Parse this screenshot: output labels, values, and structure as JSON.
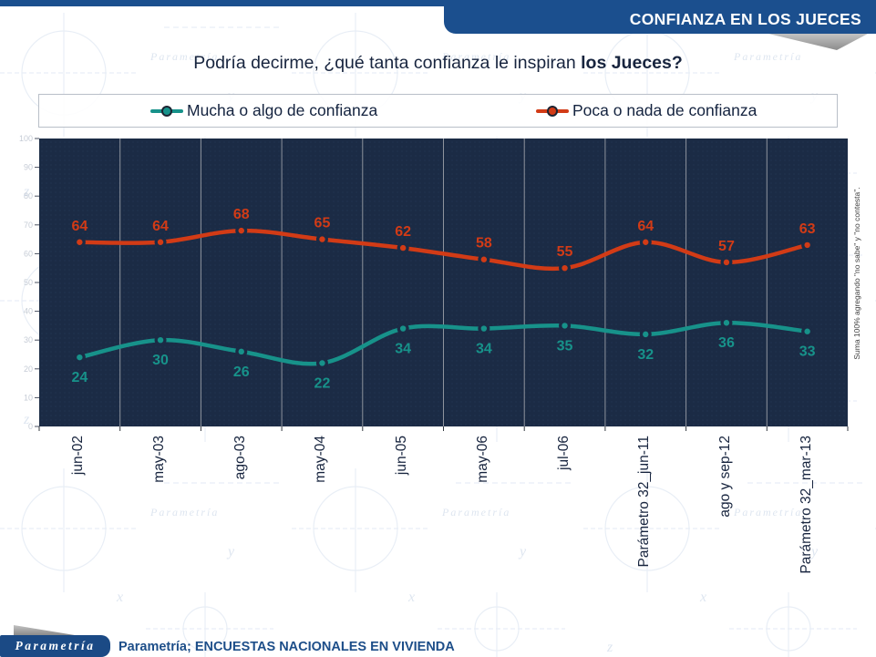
{
  "header": {
    "title": "CONFIANZA EN LOS JUECES"
  },
  "question": {
    "prefix": "Podría decirme, ¿qué tanta confianza le inspiran ",
    "bold": "los Jueces?"
  },
  "side_note": "Suma 100% agregando \"no sabe\" y \"no contesta\".",
  "footer": {
    "logo_text": "Parametría",
    "caption": "Parametría; ENCUESTAS NACIONALES EN VIVIENDA"
  },
  "colors": {
    "header_blue": "#1b4f8e",
    "footer_blue": "#1b4a85",
    "plot_background": "#1b2b45",
    "gridline": "#8e939d",
    "teal_series": "#17928a",
    "red_series": "#d23b16",
    "title_navy": "#17243e",
    "watermark_blue": "#c9d6e8"
  },
  "chart_data": {
    "type": "line",
    "title": "Podría decirme, ¿qué tanta confianza le inspiran los Jueces?",
    "categories": [
      "jun-02",
      "may-03",
      "ago-03",
      "may-04",
      "jun-05",
      "may-06",
      "jul-06",
      "Parámetro 32_jun-11",
      "ago y sep-12",
      "Parámetro 32_mar-13"
    ],
    "series": [
      {
        "name": "Mucha o algo de confianza",
        "color": "#17928a",
        "values": [
          24,
          30,
          26,
          22,
          34,
          34,
          35,
          32,
          36,
          33
        ],
        "label_position": "below"
      },
      {
        "name": "Poca o nada de confianza",
        "color": "#d23b16",
        "values": [
          64,
          64,
          68,
          65,
          62,
          58,
          55,
          64,
          57,
          63
        ],
        "label_position": "above"
      }
    ],
    "xlabel": "",
    "ylabel": "",
    "ylim": [
      0,
      100
    ],
    "yticks": [
      0,
      10,
      20,
      30,
      40,
      50,
      60,
      70,
      80,
      90,
      100
    ],
    "grid": "vertical-category-boundaries",
    "legend_position": "top",
    "line_style": "smooth",
    "markers": "dot"
  }
}
